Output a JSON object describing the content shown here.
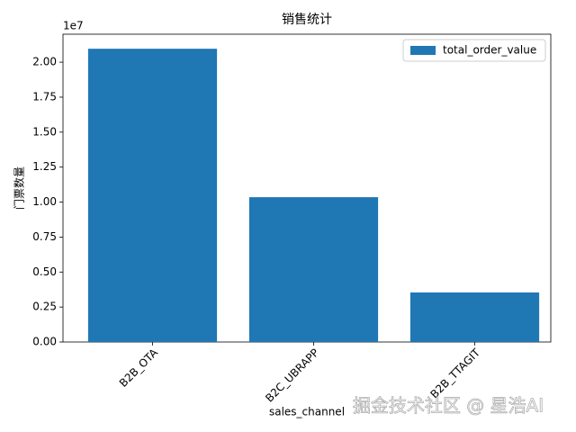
{
  "chart_data": {
    "type": "bar",
    "title": "销售统计",
    "x_label": "sales_channel",
    "y_label": "门票数量",
    "y_offset_label": "1e7",
    "categories": [
      "B2B_OTA",
      "B2C_UBRAPP",
      "B2B_TTAGIT"
    ],
    "series": [
      {
        "name": "total_order_value",
        "color": "#1f77b4",
        "values": [
          20960000,
          10350000,
          3540000
        ]
      }
    ],
    "ylim": [
      0,
      22000000
    ],
    "yticks": [
      {
        "value": 0,
        "label": "0.00"
      },
      {
        "value": 2500000,
        "label": "0.25"
      },
      {
        "value": 5000000,
        "label": "0.50"
      },
      {
        "value": 7500000,
        "label": "0.75"
      },
      {
        "value": 10000000,
        "label": "1.00"
      },
      {
        "value": 12500000,
        "label": "1.25"
      },
      {
        "value": 15000000,
        "label": "1.50"
      },
      {
        "value": 17500000,
        "label": "1.75"
      },
      {
        "value": 20000000,
        "label": "2.00"
      }
    ],
    "legend": "upper right",
    "grid": false,
    "watermark": "掘金技术社区 @ 星浩AI"
  }
}
